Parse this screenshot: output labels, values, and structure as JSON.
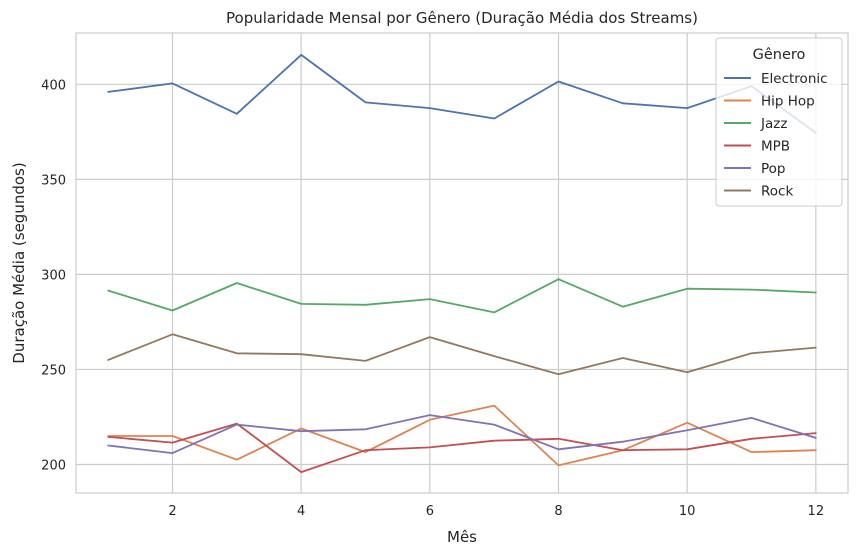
{
  "chart_data": {
    "type": "line",
    "title": "Popularidade Mensal por Gênero (Duração Média dos Streams)",
    "xlabel": "Mês",
    "ylabel": "Duração Média (segundos)",
    "xlim": [
      0.5,
      12.5
    ],
    "ylim": [
      185,
      427
    ],
    "xticks": [
      2,
      4,
      6,
      8,
      10,
      12
    ],
    "yticks": [
      200,
      250,
      300,
      350,
      400
    ],
    "grid": true,
    "legend": {
      "title": "Gênero",
      "placement": "top-right"
    },
    "x": [
      1,
      2,
      3,
      4,
      5,
      6,
      7,
      8,
      9,
      10,
      11,
      12
    ],
    "series": [
      {
        "name": "Electronic",
        "color": "#4c72b0",
        "values": [
          396,
          400.5,
          384.5,
          415.5,
          390.5,
          387.5,
          382,
          401.5,
          390,
          387.5,
          399,
          374.5
        ]
      },
      {
        "name": "Hip Hop",
        "color": "#dd8452",
        "values": [
          215,
          215,
          202.5,
          219,
          206.5,
          223.5,
          231,
          199.5,
          207.5,
          222,
          206.5,
          207.5
        ]
      },
      {
        "name": "Jazz",
        "color": "#55a868",
        "values": [
          291.5,
          281,
          295.5,
          284.5,
          284,
          287,
          280,
          297.5,
          283,
          292.5,
          292,
          290.5
        ]
      },
      {
        "name": "MPB",
        "color": "#c44e52",
        "values": [
          214.5,
          211.5,
          221.5,
          196,
          207.5,
          209,
          212.5,
          213.5,
          207.5,
          208,
          213.5,
          216.5
        ]
      },
      {
        "name": "Pop",
        "color": "#8172b3",
        "values": [
          210,
          206,
          221,
          217.5,
          218.5,
          226,
          221,
          208,
          212,
          218,
          224.5,
          214
        ]
      },
      {
        "name": "Rock",
        "color": "#937860",
        "values": [
          255,
          268.5,
          258.5,
          258,
          254.5,
          267,
          257,
          247.5,
          256,
          248.5,
          258.5,
          261.5
        ]
      }
    ]
  }
}
